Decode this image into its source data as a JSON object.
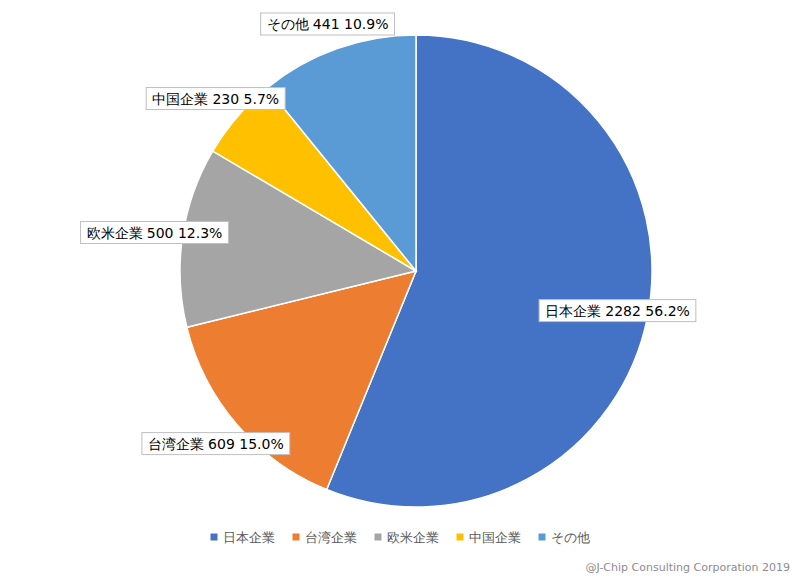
{
  "chart_data": {
    "type": "pie",
    "categories": [
      "日本企業",
      "台湾企業",
      "欧米企業",
      "中国企業",
      "その他"
    ],
    "values": [
      2282,
      609,
      500,
      230,
      441
    ],
    "value_labels": [
      "2282 56.2%",
      "609 15.0%",
      "500 12.3%",
      "230 5.7%",
      "441 10.9%"
    ],
    "colors": [
      "#4472c4",
      "#ed7d31",
      "#a5a5a5",
      "#ffc000",
      "#5b9bd5"
    ],
    "data_labels": true,
    "legend": "bottom",
    "annotations": [
      "@J-Chip Consulting Corporation 2019"
    ]
  }
}
